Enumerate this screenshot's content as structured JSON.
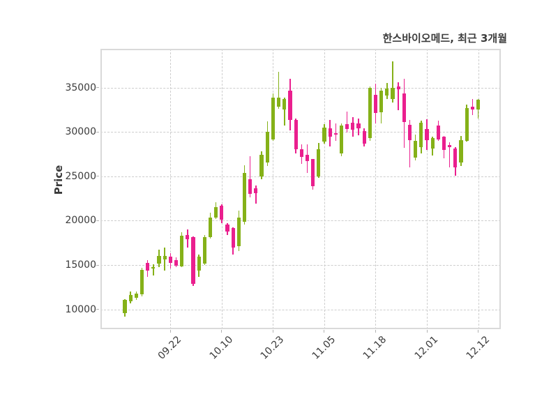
{
  "header": {
    "title": "한스바이오메드, 최근 3개월"
  },
  "chart_data": {
    "type": "candlestick",
    "title": "한스바이오메드, 최근 3개월",
    "xlabel": "",
    "ylabel": "Price",
    "grid": true,
    "legend": "none",
    "ylim": [
      7760,
      39400
    ],
    "y_ticks": [
      10000,
      15000,
      20000,
      25000,
      30000,
      35000
    ],
    "x_tick_labels": [
      "09.22",
      "10.10",
      "10.23",
      "11.05",
      "11.18",
      "12.01",
      "12.12"
    ],
    "x_tick_indices": [
      8,
      17,
      26,
      35,
      44,
      53,
      62
    ],
    "colors": {
      "up": "#85b118",
      "down": "#ea1f8e",
      "grid": "#cdcdcd",
      "border": "#d9d9d9",
      "text": "#3b3b3b"
    },
    "candles_format": [
      "open",
      "high",
      "low",
      "close"
    ],
    "candles": [
      [
        9550,
        11150,
        9200,
        11050
      ],
      [
        10930,
        11990,
        10670,
        11590
      ],
      [
        11320,
        12000,
        11100,
        11770
      ],
      [
        11720,
        14700,
        11450,
        14480
      ],
      [
        15260,
        15580,
        13690,
        14350
      ],
      [
        14600,
        15110,
        13820,
        14750
      ],
      [
        15130,
        16700,
        14800,
        16050
      ],
      [
        15650,
        16970,
        14350,
        16000
      ],
      [
        15920,
        16320,
        14610,
        15260
      ],
      [
        15575,
        15840,
        14790,
        14945
      ],
      [
        14870,
        18730,
        14750,
        18280
      ],
      [
        18410,
        19020,
        16970,
        17890
      ],
      [
        18150,
        18250,
        12640,
        12900
      ],
      [
        14350,
        16180,
        13690,
        15920
      ],
      [
        15130,
        18400,
        15000,
        18150
      ],
      [
        18150,
        20900,
        18000,
        20380
      ],
      [
        20380,
        22050,
        20200,
        21560
      ],
      [
        21690,
        21870,
        19720,
        20120
      ],
      [
        19590,
        19700,
        18410,
        18800
      ],
      [
        19200,
        19250,
        16180,
        16970
      ],
      [
        17100,
        21170,
        16580,
        20380
      ],
      [
        19860,
        26230,
        19590,
        25370
      ],
      [
        24700,
        27300,
        22600,
        23000
      ],
      [
        23660,
        24000,
        21950,
        23130
      ],
      [
        25000,
        27800,
        24700,
        27450
      ],
      [
        26550,
        31200,
        26200,
        30030
      ],
      [
        29190,
        34400,
        29000,
        33900
      ],
      [
        32850,
        36800,
        32600,
        33870
      ],
      [
        32590,
        33900,
        30770,
        33770
      ],
      [
        34700,
        36000,
        30200,
        31400
      ],
      [
        31400,
        31500,
        27600,
        28100
      ],
      [
        28100,
        28650,
        26400,
        27200
      ],
      [
        27450,
        28650,
        25400,
        26700
      ],
      [
        26950,
        27000,
        23500,
        23900
      ],
      [
        25000,
        28800,
        24800,
        28100
      ],
      [
        28900,
        30900,
        28700,
        30500
      ],
      [
        30400,
        31400,
        28400,
        29450
      ],
      [
        29900,
        31000,
        29000,
        29700
      ],
      [
        27600,
        31000,
        27300,
        30750
      ],
      [
        30900,
        32340,
        29980,
        30370
      ],
      [
        31030,
        31690,
        29450,
        30240
      ],
      [
        31000,
        31500,
        29600,
        30400
      ],
      [
        30100,
        30400,
        28400,
        28700
      ],
      [
        29350,
        35150,
        29000,
        35020
      ],
      [
        34200,
        35500,
        31000,
        32150
      ],
      [
        32200,
        35000,
        31000,
        34690
      ],
      [
        34160,
        35550,
        33750,
        34950
      ],
      [
        33770,
        38000,
        33350,
        35020
      ],
      [
        35130,
        35650,
        32450,
        34870
      ],
      [
        34340,
        36000,
        28250,
        31140
      ],
      [
        30830,
        31400,
        26000,
        29090
      ],
      [
        27100,
        29700,
        26800,
        29000
      ],
      [
        28270,
        31300,
        27600,
        31030
      ],
      [
        30370,
        31420,
        28000,
        29060
      ],
      [
        28140,
        29500,
        27340,
        29320
      ],
      [
        30770,
        31290,
        29000,
        29190
      ],
      [
        29450,
        29600,
        27080,
        28010
      ],
      [
        28540,
        28860,
        26030,
        28270
      ],
      [
        28140,
        28300,
        25100,
        26020
      ],
      [
        26550,
        29600,
        26200,
        29060
      ],
      [
        29030,
        33110,
        28900,
        32720
      ],
      [
        32850,
        33770,
        31930,
        32530
      ],
      [
        32590,
        33700,
        31540,
        33640
      ]
    ]
  }
}
